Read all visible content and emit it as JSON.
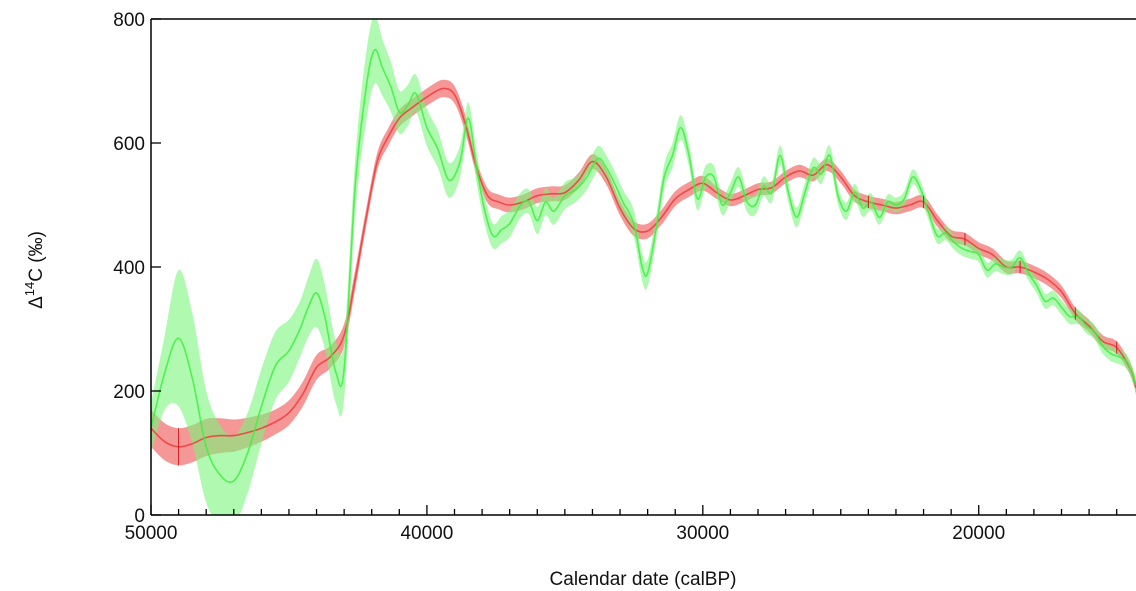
{
  "chart_data": {
    "type": "line",
    "xlabel": "Calendar date (calBP)",
    "ylabel": {
      "prefix": "Δ",
      "superscript": "14",
      "suffix": "C (‰)"
    },
    "xlim": [
      50000,
      14300
    ],
    "ylim": [
      0,
      800
    ],
    "x_reversed": true,
    "xticks": [
      50000,
      40000,
      30000,
      20000
    ],
    "xtick_labels": [
      "50000",
      "40000",
      "30000",
      "20000"
    ],
    "x_minor_step": 1000,
    "yticks": [
      0,
      200,
      400,
      600,
      800
    ],
    "ytick_labels": [
      "0",
      "200",
      "400",
      "600",
      "800"
    ],
    "grid": false,
    "legend": "none",
    "series": [
      {
        "color": "#ee3b3b",
        "band_color": "#f26b6b",
        "x": [
          50000,
          49500,
          49000,
          48500,
          48000,
          47500,
          47000,
          46500,
          46000,
          45500,
          45000,
          44500,
          44000,
          43500,
          43000,
          42600,
          42200,
          41800,
          41400,
          41000,
          40600,
          40200,
          39800,
          39400,
          39000,
          38600,
          38200,
          37800,
          37400,
          37000,
          36500,
          36000,
          35500,
          35000,
          34500,
          34000,
          33500,
          33000,
          32500,
          32000,
          31500,
          31000,
          30500,
          30000,
          29500,
          29000,
          28500,
          28000,
          27500,
          27000,
          26500,
          26000,
          25500,
          25000,
          24500,
          24000,
          23500,
          23000,
          22500,
          22000,
          21500,
          21000,
          20500,
          20000,
          19500,
          19000,
          18500,
          18000,
          17500,
          17000,
          16500,
          16000,
          15500,
          15000,
          14500,
          14300
        ],
        "y": [
          140,
          118,
          110,
          115,
          125,
          128,
          128,
          133,
          140,
          150,
          165,
          195,
          238,
          255,
          290,
          380,
          480,
          570,
          610,
          640,
          655,
          668,
          680,
          688,
          678,
          630,
          560,
          515,
          505,
          500,
          505,
          515,
          518,
          520,
          540,
          570,
          545,
          495,
          462,
          458,
          480,
          510,
          525,
          535,
          520,
          508,
          515,
          525,
          528,
          545,
          555,
          548,
          565,
          545,
          515,
          505,
          500,
          495,
          500,
          505,
          475,
          450,
          445,
          430,
          420,
          400,
          400,
          392,
          380,
          360,
          325,
          305,
          280,
          270,
          235,
          205
        ],
        "band": [
          30,
          30,
          30,
          30,
          30,
          28,
          26,
          24,
          22,
          20,
          20,
          20,
          20,
          18,
          18,
          16,
          14,
          14,
          14,
          14,
          14,
          14,
          14,
          14,
          14,
          14,
          12,
          12,
          12,
          12,
          12,
          12,
          12,
          12,
          12,
          12,
          12,
          12,
          12,
          12,
          12,
          12,
          12,
          12,
          10,
          10,
          10,
          10,
          10,
          10,
          10,
          10,
          10,
          10,
          10,
          10,
          10,
          10,
          10,
          10,
          10,
          10,
          10,
          10,
          10,
          10,
          10,
          10,
          10,
          10,
          10,
          10,
          10,
          10,
          10,
          10
        ]
      },
      {
        "color": "#3ef03e",
        "band_color": "#7cf57c",
        "x": [
          50000,
          49500,
          49000,
          48500,
          48000,
          47500,
          47000,
          46500,
          46000,
          45500,
          45000,
          44600,
          44300,
          44000,
          43700,
          43300,
          43000,
          42600,
          42200,
          41900,
          41600,
          41300,
          41000,
          40700,
          40400,
          40000,
          39600,
          39200,
          38800,
          38500,
          38200,
          37900,
          37600,
          37300,
          37000,
          36600,
          36300,
          36000,
          35700,
          35400,
          35000,
          34600,
          34200,
          33800,
          33500,
          33200,
          32900,
          32500,
          32200,
          32000,
          31700,
          31400,
          31100,
          30800,
          30500,
          30200,
          29900,
          29600,
          29300,
          29000,
          28700,
          28400,
          28100,
          27800,
          27500,
          27200,
          26900,
          26600,
          26300,
          26000,
          25700,
          25400,
          25100,
          24800,
          24500,
          24200,
          23900,
          23600,
          23300,
          23000,
          22700,
          22400,
          22100,
          21800,
          21500,
          21200,
          20900,
          20600,
          20300,
          20000,
          19700,
          19400,
          19100,
          18800,
          18500,
          18200,
          17900,
          17600,
          17300,
          17000,
          16700,
          16400,
          16100,
          15800,
          15500,
          15200,
          14900,
          14600,
          14300
        ],
        "y": [
          140,
          230,
          285,
          220,
          110,
          65,
          55,
          100,
          175,
          240,
          265,
          300,
          335,
          358,
          320,
          230,
          235,
          530,
          690,
          750,
          720,
          690,
          650,
          660,
          680,
          625,
          590,
          540,
          570,
          640,
          560,
          490,
          450,
          460,
          470,
          500,
          505,
          475,
          505,
          490,
          515,
          525,
          545,
          575,
          560,
          535,
          505,
          470,
          400,
          390,
          460,
          545,
          580,
          625,
          580,
          510,
          545,
          545,
          500,
          520,
          545,
          505,
          500,
          530,
          520,
          580,
          520,
          480,
          520,
          560,
          550,
          580,
          515,
          490,
          520,
          495,
          505,
          480,
          505,
          500,
          510,
          545,
          525,
          485,
          450,
          455,
          440,
          430,
          425,
          420,
          395,
          405,
          400,
          400,
          415,
          390,
          370,
          345,
          350,
          335,
          320,
          320,
          305,
          295,
          272,
          260,
          255,
          245,
          210
        ],
        "band": [
          40,
          60,
          110,
          105,
          90,
          80,
          72,
          65,
          60,
          55,
          50,
          45,
          48,
          55,
          52,
          50,
          48,
          45,
          55,
          55,
          45,
          40,
          35,
          33,
          30,
          30,
          30,
          28,
          26,
          25,
          24,
          22,
          20,
          22,
          22,
          20,
          20,
          22,
          22,
          22,
          22,
          20,
          20,
          20,
          20,
          20,
          20,
          22,
          22,
          22,
          20,
          20,
          20,
          20,
          18,
          18,
          18,
          18,
          16,
          16,
          16,
          16,
          16,
          16,
          16,
          16,
          16,
          16,
          16,
          16,
          16,
          16,
          14,
          14,
          14,
          14,
          14,
          12,
          12,
          12,
          12,
          12,
          12,
          12,
          12,
          12,
          12,
          12,
          12,
          12,
          12,
          12,
          12,
          12,
          12,
          12,
          12,
          12,
          12,
          12,
          12,
          12,
          12,
          12,
          12,
          12,
          12,
          12,
          12
        ]
      }
    ],
    "tie_points": [
      49000,
      24000,
      22000,
      20500,
      18500,
      16500,
      15000
    ]
  }
}
